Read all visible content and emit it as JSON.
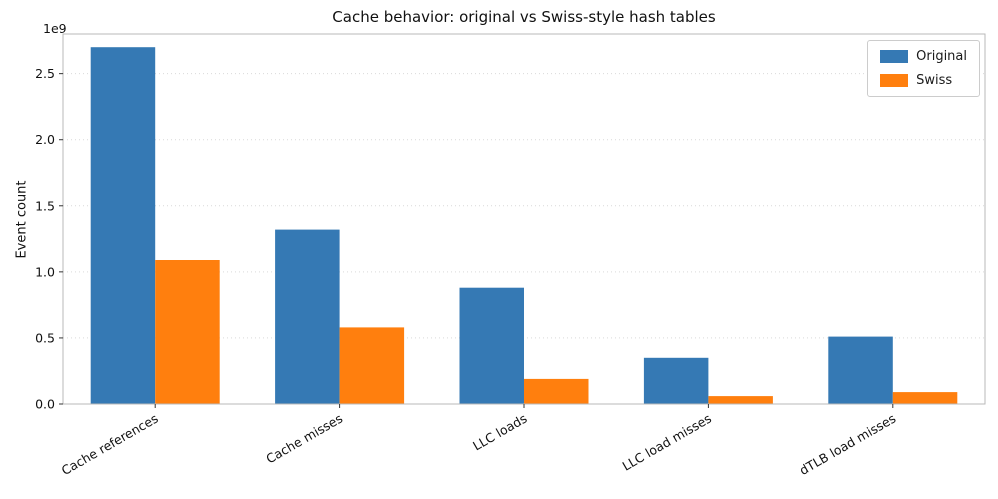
{
  "chart_data": {
    "type": "bar",
    "title": "Cache behavior: original vs Swiss-style hash tables",
    "ylabel": "Event count",
    "xlabel": "",
    "offset_label": "1e9",
    "categories": [
      "Cache references",
      "Cache misses",
      "LLC loads",
      "LLC load misses",
      "dTLB load misses"
    ],
    "series": [
      {
        "name": "Original",
        "color": "#3579b4",
        "values": [
          2700000000,
          1320000000,
          880000000,
          350000000,
          510000000
        ]
      },
      {
        "name": "Swiss",
        "color": "#ff7f0e",
        "values": [
          1090000000,
          580000000,
          190000000,
          60000000,
          90000000
        ]
      }
    ],
    "yticks": [
      0.0,
      0.5,
      1.0,
      1.5,
      2.0,
      2.5
    ],
    "ylim": [
      0,
      2800000000
    ],
    "grid": true,
    "legend_position": "upper right",
    "bar_width_fraction": 0.35
  }
}
